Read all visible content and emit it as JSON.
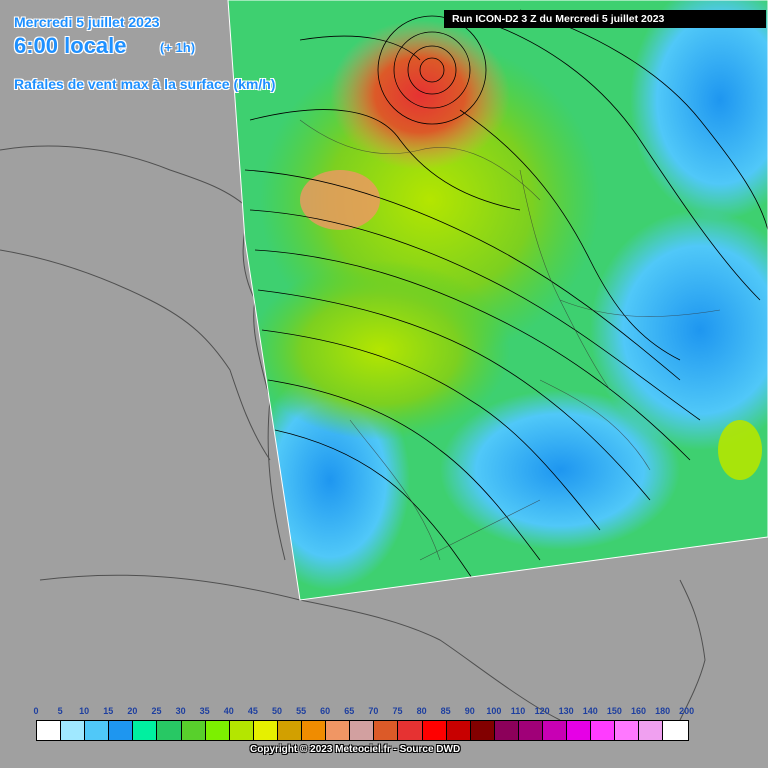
{
  "header": {
    "date": "Mercredi 5 juillet 2023",
    "time": "6:00 locale",
    "offset": "(+ 1h)",
    "parameter": "Rafales de vent max à la surface (km/h)"
  },
  "run_info": "Run ICON-D2 3 Z du Mercredi 5 juillet 2023",
  "legend": {
    "ticks": [
      "0",
      "5",
      "10",
      "15",
      "20",
      "25",
      "30",
      "35",
      "40",
      "45",
      "50",
      "55",
      "60",
      "65",
      "70",
      "75",
      "80",
      "85",
      "90",
      "100",
      "110",
      "120",
      "130",
      "140",
      "150",
      "160",
      "180",
      "200"
    ],
    "colors": [
      "#ffffff",
      "#a0e8ff",
      "#50c8f8",
      "#1e96f0",
      "#00f0a0",
      "#28c864",
      "#58d02c",
      "#7cf000",
      "#b4e600",
      "#e6f000",
      "#d2a000",
      "#f08c00",
      "#f09664",
      "#d2a0a0",
      "#dc5a28",
      "#e63232",
      "#ff0000",
      "#c80000",
      "#820000",
      "#8c005a",
      "#a00078",
      "#c800b4",
      "#e600e6",
      "#ff3cff",
      "#ff78ff",
      "#f0a0f0",
      "#ffffff"
    ]
  },
  "copyright": "Copyright © 2023 Meteociel.fr - Source DWD",
  "colors": {
    "background": "#a0a0a0",
    "header_text": "#1e90ff",
    "run_bar": "#000000"
  }
}
